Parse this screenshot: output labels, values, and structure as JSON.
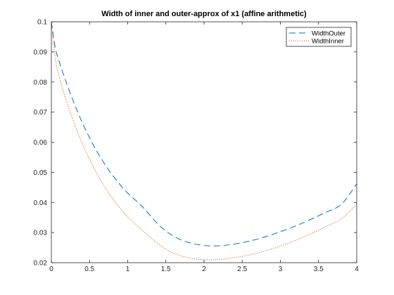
{
  "chart_data": {
    "type": "line",
    "title": "Width of inner and outer-approx of x1 (affine arithmetic)",
    "xlabel": "",
    "ylabel": "",
    "xlim": [
      0,
      4
    ],
    "ylim": [
      0.02,
      0.1
    ],
    "xticks": [
      "0",
      "0.5",
      "1",
      "1.5",
      "2",
      "2.5",
      "3",
      "3.5",
      "4"
    ],
    "yticks": [
      "0.02",
      "0.03",
      "0.04",
      "0.05",
      "0.06",
      "0.07",
      "0.08",
      "0.09",
      "0.1"
    ],
    "grid": false,
    "legend_position": "top-right",
    "series": [
      {
        "name": "WidthOuter",
        "color": "#0072bd",
        "line_style": "dashed",
        "x": [
          0,
          0.05,
          0.1,
          0.2,
          0.3,
          0.4,
          0.5,
          0.6,
          0.7,
          0.8,
          0.9,
          1.0,
          1.2,
          1.4,
          1.6,
          1.8,
          2.0,
          2.2,
          2.4,
          2.6,
          2.8,
          3.0,
          3.2,
          3.4,
          3.6,
          3.8,
          4.0
        ],
        "y": [
          0.1,
          0.0915,
          0.087,
          0.0795,
          0.0728,
          0.0668,
          0.0615,
          0.0568,
          0.0527,
          0.0491,
          0.0459,
          0.0431,
          0.0384,
          0.0327,
          0.0288,
          0.0267,
          0.0257,
          0.0256,
          0.0262,
          0.0272,
          0.0286,
          0.0303,
          0.0322,
          0.0344,
          0.0368,
          0.0394,
          0.0462
        ]
      },
      {
        "name": "WidthInner",
        "color": "#d95319",
        "line_style": "dotted",
        "x": [
          0,
          0.05,
          0.1,
          0.2,
          0.3,
          0.4,
          0.5,
          0.6,
          0.7,
          0.8,
          0.9,
          1.0,
          1.2,
          1.4,
          1.6,
          1.8,
          2.0,
          2.2,
          2.4,
          2.6,
          2.8,
          3.0,
          3.2,
          3.4,
          3.6,
          3.8,
          4.0
        ],
        "y": [
          0.1,
          0.088,
          0.082,
          0.0735,
          0.0663,
          0.0599,
          0.0543,
          0.0494,
          0.0451,
          0.0414,
          0.0381,
          0.0352,
          0.0306,
          0.0262,
          0.0232,
          0.0216,
          0.021,
          0.0211,
          0.0217,
          0.0226,
          0.0239,
          0.0255,
          0.0274,
          0.0296,
          0.032,
          0.0346,
          0.0393
        ]
      }
    ]
  }
}
